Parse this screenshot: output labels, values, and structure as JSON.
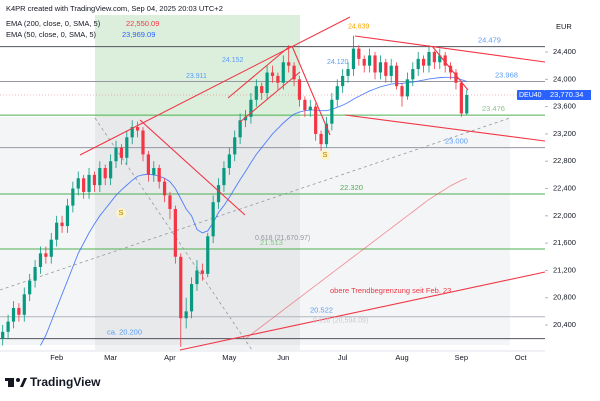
{
  "header": {
    "credit": "K4PR created with TradingView.com, Sep 04, 2025 20:03 UTC+2"
  },
  "footer": {
    "brand": "TradingView"
  },
  "chart_data": {
    "type": "candlestick",
    "symbol": "DEU40",
    "unit": "EUR",
    "last_label": "23,770.34",
    "up_color": "#089981",
    "down_color": "#f23645",
    "ylim": [
      20034,
      25089
    ],
    "yticks": [
      {
        "value": 20400,
        "label": "20,400"
      },
      {
        "value": 20800,
        "label": "20,800"
      },
      {
        "value": 21200,
        "label": "21,200"
      },
      {
        "value": 21600,
        "label": "21,600"
      },
      {
        "value": 22000,
        "label": "22,000"
      },
      {
        "value": 22400,
        "label": "22,400"
      },
      {
        "value": 22800,
        "label": "22,800"
      },
      {
        "value": 23200,
        "label": "23,200"
      },
      {
        "value": 23600,
        "label": "23,600"
      },
      {
        "value": 24000,
        "label": "24,000"
      },
      {
        "value": 24400,
        "label": "24,400"
      }
    ],
    "categories": [
      null,
      null,
      null,
      null,
      null,
      null,
      null,
      null,
      null,
      null,
      "Feb",
      null,
      null,
      null,
      null,
      null,
      null,
      null,
      null,
      null,
      "Mar",
      null,
      null,
      null,
      null,
      null,
      null,
      null,
      null,
      null,
      null,
      "Apr",
      null,
      null,
      null,
      null,
      null,
      null,
      null,
      null,
      null,
      null,
      "May",
      null,
      null,
      null,
      null,
      null,
      null,
      null,
      null,
      null,
      "Jun",
      null,
      null,
      null,
      null,
      null,
      null,
      null,
      null,
      null,
      null,
      "Jul",
      null,
      null,
      null,
      null,
      null,
      null,
      null,
      null,
      null,
      null,
      "Aug",
      null,
      null,
      null,
      null,
      null,
      null,
      null,
      null,
      null,
      null,
      "Sep",
      null,
      null,
      null,
      null,
      null,
      null,
      null,
      null,
      null,
      null,
      "Oct",
      null,
      null,
      null,
      null
    ],
    "open": [
      20200,
      20300,
      20450,
      20650,
      20550,
      20850,
      21050,
      21250,
      21450,
      21400,
      21650,
      21900,
      21850,
      22150,
      22400,
      22550,
      22350,
      22600,
      22450,
      22700,
      22550,
      22800,
      23000,
      22850,
      23150,
      23300,
      23250,
      22900,
      22600,
      22700,
      22500,
      22300,
      22100,
      21400,
      20500,
      20600,
      21000,
      21200,
      21150,
      21700,
      22200,
      22450,
      22700,
      22900,
      23150,
      23400,
      23450,
      23700,
      23900,
      23800,
      24100,
      24050,
      23950,
      24250,
      24200,
      24000,
      23700,
      23550,
      23600,
      23200,
      23050,
      23350,
      23700,
      23900,
      24050,
      24150,
      24450,
      24300,
      24200,
      24350,
      24100,
      24250,
      24050,
      24200,
      23900,
      23750,
      24000,
      24150,
      24300,
      24200,
      24400,
      24250,
      24350,
      24200,
      24100,
      23950,
      23500,
      null,
      null,
      null,
      null,
      null,
      null,
      null,
      null,
      null,
      null,
      null,
      null,
      null,
      null
    ],
    "high": [
      20400,
      20550,
      20750,
      20720,
      20950,
      21150,
      21350,
      21550,
      21550,
      21750,
      22000,
      22000,
      22250,
      22500,
      22650,
      22600,
      22700,
      22650,
      22800,
      22750,
      22900,
      23100,
      23050,
      23250,
      23400,
      23380,
      23300,
      22950,
      22800,
      22750,
      22550,
      22350,
      22150,
      21450,
      20800,
      21100,
      21350,
      21300,
      21750,
      22300,
      22550,
      22800,
      23000,
      23250,
      23500,
      23550,
      23800,
      24000,
      23950,
      24200,
      24200,
      24100,
      24350,
      24500,
      24250,
      24050,
      23750,
      23700,
      23650,
      23250,
      23450,
      23800,
      24000,
      24150,
      24250,
      24639,
      24500,
      24350,
      24450,
      24400,
      24350,
      24300,
      24300,
      24250,
      23950,
      24100,
      24250,
      24400,
      24350,
      24500,
      24420,
      24450,
      24400,
      24250,
      24150,
      23980,
      23850,
      null,
      null,
      null,
      null,
      null,
      null,
      null,
      null,
      null,
      null,
      null,
      null,
      null,
      null
    ],
    "low": [
      20100,
      20200,
      20350,
      20450,
      20450,
      20750,
      20950,
      21150,
      21300,
      21300,
      21550,
      21750,
      21750,
      22050,
      22300,
      22250,
      22250,
      22350,
      22350,
      22450,
      22450,
      22700,
      22750,
      22750,
      23050,
      23150,
      22800,
      22500,
      22500,
      22400,
      22200,
      21950,
      21300,
      20080,
      20350,
      20500,
      20900,
      21050,
      21100,
      21600,
      22100,
      22350,
      22600,
      22800,
      23050,
      23300,
      23350,
      23600,
      23700,
      23700,
      23950,
      23850,
      23850,
      24100,
      23900,
      23600,
      23450,
      23450,
      23100,
      22950,
      23000,
      23250,
      23600,
      23800,
      23950,
      24050,
      24200,
      24100,
      24100,
      24000,
      24000,
      23950,
      23950,
      23850,
      23600,
      23700,
      23900,
      24050,
      24100,
      24100,
      24150,
      24150,
      24100,
      24000,
      23850,
      23450,
      23480,
      null,
      null,
      null,
      null,
      null,
      null,
      null,
      null,
      null,
      null,
      null,
      null,
      null,
      null
    ],
    "close": [
      20300,
      20450,
      20650,
      20550,
      20850,
      21050,
      21250,
      21450,
      21400,
      21650,
      21900,
      21850,
      22150,
      22400,
      22550,
      22350,
      22600,
      22450,
      22700,
      22550,
      22800,
      23000,
      22850,
      23150,
      23300,
      23250,
      22900,
      22600,
      22700,
      22500,
      22300,
      22100,
      21400,
      20500,
      20600,
      21000,
      21200,
      21150,
      21700,
      22200,
      22450,
      22700,
      22900,
      23150,
      23400,
      23450,
      23700,
      23900,
      23800,
      24100,
      24050,
      23950,
      24250,
      24200,
      24000,
      23700,
      23550,
      23600,
      23200,
      23050,
      23350,
      23700,
      23900,
      24050,
      24150,
      24450,
      24300,
      24200,
      24350,
      24100,
      24250,
      24050,
      24200,
      23900,
      23750,
      24000,
      24150,
      24300,
      24200,
      24400,
      24250,
      24350,
      24200,
      24100,
      23950,
      23500,
      23770.34,
      null,
      null,
      null,
      null,
      null,
      null,
      null,
      null,
      null,
      null,
      null,
      null,
      null,
      null
    ],
    "series": [
      {
        "name": "EMA (200, close, 0, SMA, 5)",
        "color": "#f23645",
        "value_label": "22,550.09",
        "values": [
          null,
          null,
          null,
          null,
          null,
          null,
          null,
          null,
          null,
          null,
          null,
          null,
          null,
          null,
          null,
          null,
          null,
          null,
          null,
          null,
          null,
          null,
          null,
          null,
          null,
          null,
          null,
          null,
          null,
          null,
          null,
          null,
          null,
          null,
          null,
          null,
          null,
          null,
          null,
          null,
          null,
          null,
          null,
          null,
          null,
          20200,
          20260,
          20320,
          20380,
          20440,
          20500,
          20560,
          20620,
          20680,
          20740,
          20800,
          20860,
          20920,
          20980,
          21040,
          21100,
          21160,
          21220,
          21280,
          21340,
          21400,
          21460,
          21520,
          21580,
          21640,
          21700,
          21760,
          21820,
          21880,
          21940,
          22000,
          22060,
          22120,
          22180,
          22240,
          22290,
          22340,
          22390,
          22440,
          22480,
          22520,
          22550.09,
          null,
          null,
          null,
          null,
          null,
          null,
          null,
          null,
          null,
          null,
          null,
          null,
          null,
          null
        ]
      },
      {
        "name": "EMA (50, close, 0, SMA, 5)",
        "color": "#2962ff",
        "value_label": "23,969.09",
        "values": [
          null,
          null,
          null,
          null,
          null,
          null,
          null,
          20100,
          20250,
          20450,
          20650,
          20850,
          21050,
          21250,
          21450,
          21600,
          21750,
          21880,
          22000,
          22100,
          22200,
          22300,
          22380,
          22450,
          22520,
          22580,
          22600,
          22610,
          22600,
          22580,
          22550,
          22500,
          22400,
          22250,
          22100,
          22000,
          21800,
          21750,
          21780,
          21900,
          22050,
          22150,
          22270,
          22400,
          22530,
          22650,
          22780,
          22900,
          23000,
          23100,
          23200,
          23280,
          23360,
          23430,
          23490,
          23520,
          23540,
          23550,
          23550,
          23540,
          23540,
          23560,
          23590,
          23620,
          23660,
          23710,
          23750,
          23790,
          23830,
          23860,
          23890,
          23910,
          23930,
          23940,
          23940,
          23950,
          23960,
          23975,
          23990,
          24005,
          24015,
          24025,
          24030,
          24030,
          24020,
          23995,
          23969.09,
          null,
          null,
          null,
          null,
          null,
          null,
          null,
          null,
          null,
          null,
          null,
          null,
          null,
          null
        ]
      }
    ],
    "levels": [
      {
        "value": 24479,
        "label": "24.479",
        "color": "#50535e",
        "label_color": "#5b9cf6"
      },
      {
        "value": 23968,
        "label": "23.968",
        "color": "#9598a1",
        "label_color": "#5b9cf6"
      },
      {
        "value": 23476,
        "label": "23.476",
        "color": "#4caf50",
        "label_color": "#8fbf8f"
      },
      {
        "value": 23000,
        "label": "23.000",
        "color": "#9598a1",
        "label_color": "#5b9cf6"
      },
      {
        "value": 22320,
        "label": "22.320",
        "color": "#4caf50",
        "label_color": "#4caf50"
      },
      {
        "value": 21513,
        "label": "21.513",
        "color": "#4caf50",
        "label_color": "#81c784"
      },
      {
        "value": 20522,
        "label": "20.522",
        "color": "#b2b5be",
        "label_color": "#5b9cf6"
      },
      {
        "value": 20200,
        "label": "ca. 20.200",
        "color": "#50535e",
        "label_color": "#5b9cf6"
      }
    ],
    "points": [
      {
        "value": 24639,
        "label": "24.639",
        "color": "#f7a600"
      },
      {
        "value": 24152,
        "label": "24.152",
        "color": "#5b9cf6"
      },
      {
        "value": 23911,
        "label": "23.911",
        "color": "#5b9cf6"
      },
      {
        "value": 24120,
        "label": "24.120",
        "color": "#5b9cf6"
      },
      {
        "value": 21670.97,
        "label": "0.618 (21,670.97)",
        "color": "#9598a1"
      },
      {
        "value": 20594.09,
        "label": "0.618 (20,594.09)",
        "color": "#c8cad0"
      }
    ],
    "notes": [
      "obere Trendbegrenzung seit Feb. 23",
      "S",
      "S"
    ]
  }
}
